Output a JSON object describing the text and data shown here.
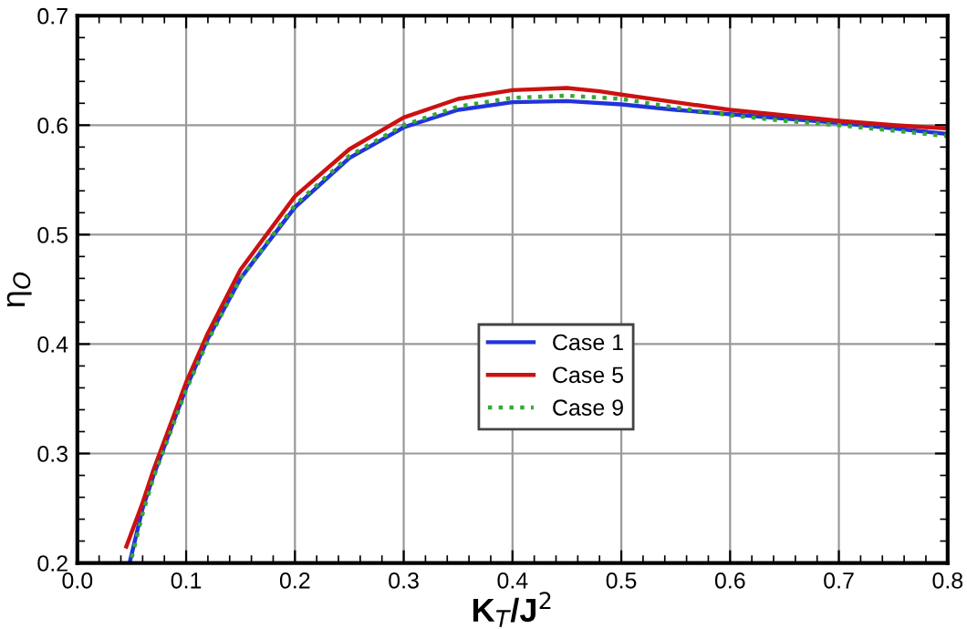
{
  "chart_data": {
    "type": "line",
    "xlabel": "K$_{T}$/J$^{2}$",
    "ylabel": "η$_{O}$",
    "xlim": [
      0.0,
      0.8
    ],
    "xticks": [
      {
        "value": 0.0,
        "label": "0.0"
      },
      0.1,
      0.2,
      0.3,
      0.4,
      0.5,
      0.6,
      0.7,
      0.8
    ],
    "ylim": [
      0.2,
      0.7
    ],
    "yticks": [
      0.2,
      0.3,
      0.4,
      0.5,
      0.6,
      0.7
    ],
    "grid": true,
    "legend": "center",
    "line_style": "solid",
    "series": [
      {
        "name": "Case 1",
        "color": "#2233dd",
        "x": [
          0.048,
          0.06,
          0.07,
          0.085,
          0.1,
          0.12,
          0.15,
          0.2,
          0.25,
          0.3,
          0.35,
          0.4,
          0.45,
          0.5,
          0.55,
          0.6,
          0.65,
          0.7,
          0.75,
          0.8
        ],
        "values": [
          0.2,
          0.25,
          0.28,
          0.32,
          0.36,
          0.405,
          0.46,
          0.525,
          0.57,
          0.598,
          0.614,
          0.621,
          0.622,
          0.619,
          0.614,
          0.61,
          0.606,
          0.602,
          0.597,
          0.592
        ]
      },
      {
        "name": "Case 5",
        "color": "#cc1111",
        "x": [
          0.045,
          0.06,
          0.07,
          0.085,
          0.1,
          0.12,
          0.15,
          0.2,
          0.25,
          0.3,
          0.35,
          0.4,
          0.45,
          0.48,
          0.5,
          0.55,
          0.6,
          0.65,
          0.7,
          0.75,
          0.8
        ],
        "values": [
          0.215,
          0.255,
          0.285,
          0.325,
          0.365,
          0.41,
          0.468,
          0.535,
          0.578,
          0.607,
          0.624,
          0.632,
          0.634,
          0.631,
          0.628,
          0.621,
          0.614,
          0.609,
          0.604,
          0.6,
          0.597
        ]
      },
      {
        "name": "Case 9",
        "color": "#33aa33",
        "line_style": "dotted",
        "x": [
          0.05,
          0.06,
          0.07,
          0.085,
          0.1,
          0.12,
          0.15,
          0.2,
          0.25,
          0.3,
          0.35,
          0.4,
          0.45,
          0.5,
          0.55,
          0.6,
          0.65,
          0.7,
          0.75,
          0.8
        ],
        "values": [
          0.205,
          0.245,
          0.278,
          0.318,
          0.358,
          0.403,
          0.46,
          0.527,
          0.572,
          0.6,
          0.617,
          0.625,
          0.627,
          0.624,
          0.616,
          0.609,
          0.604,
          0.6,
          0.595,
          0.59
        ]
      }
    ]
  }
}
